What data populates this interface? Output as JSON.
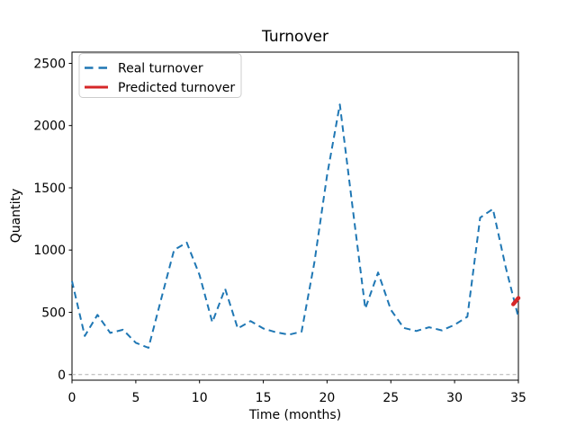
{
  "title": "Turnover",
  "axes": {
    "xlabel": "Time (months)",
    "ylabel": "Quantity"
  },
  "legend": {
    "position": "upper left",
    "items": [
      {
        "label": "Real turnover",
        "color": "#1f77b4",
        "style": "dashed"
      },
      {
        "label": "Predicted turnover",
        "color": "#d62728",
        "style": "solid"
      }
    ]
  },
  "colors": {
    "real": "#1f77b4",
    "predicted": "#d62728",
    "zero_line": "#b0b0b0",
    "spine": "#000000",
    "background": "#ffffff",
    "legend_border": "#cccccc"
  },
  "chart_data": {
    "type": "line",
    "title": "Turnover",
    "xlabel": "Time (months)",
    "ylabel": "Quantity",
    "xlim": [
      0,
      35
    ],
    "ylim": [
      -45,
      2590
    ],
    "xticks": [
      0,
      5,
      10,
      15,
      20,
      25,
      30,
      35
    ],
    "yticks": [
      0,
      500,
      1000,
      1500,
      2000,
      2500
    ],
    "grid": false,
    "zero_line": true,
    "legend_position": "upper left",
    "series": [
      {
        "name": "Real turnover",
        "color": "#1f77b4",
        "line_style": "dashed",
        "line_width": 2,
        "x": [
          0,
          1,
          2,
          3,
          4,
          5,
          6,
          7,
          8,
          9,
          10,
          11,
          12,
          13,
          14,
          15,
          16,
          17,
          18,
          19,
          20,
          21,
          22,
          23,
          24,
          25,
          26,
          27,
          28,
          29,
          30,
          31,
          32,
          33,
          34,
          35
        ],
        "values": [
          750,
          310,
          480,
          335,
          360,
          255,
          215,
          610,
          1000,
          1060,
          800,
          420,
          690,
          370,
          430,
          370,
          340,
          320,
          345,
          900,
          1600,
          2170,
          1340,
          530,
          820,
          520,
          375,
          350,
          380,
          355,
          400,
          465,
          1260,
          1330,
          865,
          460
        ]
      },
      {
        "name": "Predicted turnover",
        "color": "#d62728",
        "line_style": "solid",
        "line_width": 4.5,
        "x": [
          34.6,
          35
        ],
        "values": [
          565,
          615
        ]
      }
    ]
  }
}
